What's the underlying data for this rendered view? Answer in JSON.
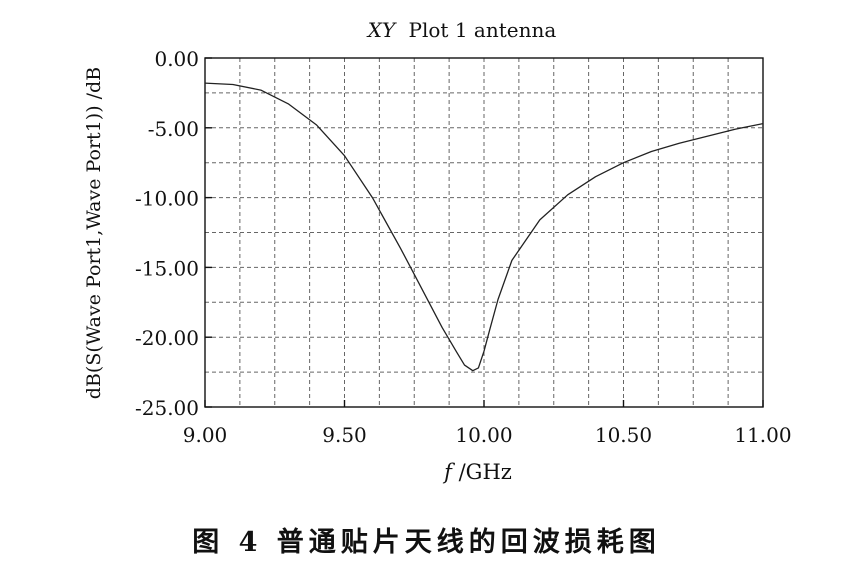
{
  "figure": {
    "caption": "图 4   普通贴片天线的回波损耗图"
  },
  "chart_data": {
    "type": "line",
    "title_italic": "XY",
    "title_rest": "Plot 1 antenna",
    "xlabel_italic": "f",
    "xlabel_rest": "/GHz",
    "ylabel": "dB(S(Wave Port1,Wave Port1)) /dB",
    "xlim": [
      9.0,
      11.0
    ],
    "ylim": [
      -25.0,
      0.0
    ],
    "x_ticks": [
      {
        "value": 9.0,
        "label": "9.00"
      },
      {
        "value": 9.5,
        "label": "9.50"
      },
      {
        "value": 10.0,
        "label": "10.00"
      },
      {
        "value": 10.5,
        "label": "10.50"
      },
      {
        "value": 11.0,
        "label": "11.00"
      }
    ],
    "y_ticks": [
      {
        "value": 0,
        "label": "0.00"
      },
      {
        "value": -5,
        "label": "-5.00"
      },
      {
        "value": -10,
        "label": "-10.00"
      },
      {
        "value": -15,
        "label": "-15.00"
      },
      {
        "value": -20,
        "label": "-20.00"
      },
      {
        "value": -25,
        "label": "-25.00"
      }
    ],
    "grid": true,
    "series": [
      {
        "x": [
          9.0,
          9.1,
          9.2,
          9.3,
          9.4,
          9.5,
          9.6,
          9.7,
          9.75,
          9.8,
          9.85,
          9.9,
          9.93,
          9.96,
          9.98,
          10.0,
          10.02,
          10.05,
          10.1,
          10.2,
          10.3,
          10.4,
          10.5,
          10.6,
          10.7,
          10.8,
          10.9,
          11.0
        ],
        "y": [
          -1.8,
          -1.9,
          -2.3,
          -3.3,
          -4.8,
          -7.0,
          -10.0,
          -13.6,
          -15.5,
          -17.4,
          -19.3,
          -21.0,
          -22.0,
          -22.4,
          -22.2,
          -21.0,
          -19.5,
          -17.3,
          -14.5,
          -11.6,
          -9.8,
          -8.5,
          -7.5,
          -6.7,
          -6.1,
          -5.6,
          -5.1,
          -4.7
        ]
      }
    ]
  }
}
